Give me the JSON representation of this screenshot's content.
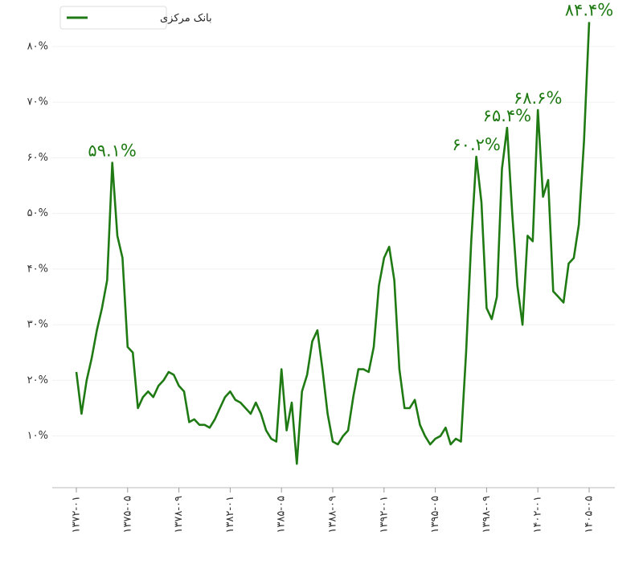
{
  "chart_data": {
    "type": "line",
    "categories": [
      "۱۳۷۲-۰۱",
      null,
      null,
      null,
      null,
      null,
      null,
      null,
      null,
      null,
      "۱۳۷۵-۰۵",
      null,
      null,
      null,
      null,
      null,
      null,
      null,
      null,
      null,
      "۱۳۷۸-۰۹",
      null,
      null,
      null,
      null,
      null,
      null,
      null,
      null,
      null,
      "۱۳۸۲-۰۱",
      null,
      null,
      null,
      null,
      null,
      null,
      null,
      null,
      null,
      "۱۳۸۵-۰۵",
      null,
      null,
      null,
      null,
      null,
      null,
      null,
      null,
      null,
      "۱۳۸۸-۰۹",
      null,
      null,
      null,
      null,
      null,
      null,
      null,
      null,
      null,
      "۱۳۹۲-۰۱",
      null,
      null,
      null,
      null,
      null,
      null,
      null,
      null,
      null,
      "۱۳۹۵-۰۵",
      null,
      null,
      null,
      null,
      null,
      null,
      null,
      null,
      null,
      "۱۳۹۸-۰۹",
      null,
      null,
      null,
      null,
      null,
      null,
      null,
      null,
      null,
      "۱۴۰۲-۰۱",
      null,
      null,
      null,
      null,
      null,
      null,
      null,
      null,
      null,
      "۱۴۰۵-۰۵"
    ],
    "series": [
      {
        "name": "بانک مرکزی",
        "color": "#1f7a14",
        "values": [
          21.5,
          14,
          20,
          24,
          29,
          33,
          38,
          59.1,
          46,
          42,
          26,
          25,
          15,
          17,
          18,
          17,
          19,
          20,
          21.5,
          21,
          19,
          18,
          12.5,
          13,
          12,
          12,
          11.5,
          13,
          15,
          17,
          18,
          16.5,
          16,
          15,
          14,
          16,
          14,
          11,
          9.5,
          9,
          22,
          11,
          16,
          5,
          18,
          21,
          27,
          29,
          22,
          14,
          9,
          8.5,
          10,
          11,
          17,
          22,
          22,
          21.5,
          26,
          37,
          42,
          44,
          38,
          22,
          15,
          15,
          16.5,
          12,
          10,
          8.5,
          9.5,
          10,
          11.5,
          8.5,
          9.5,
          9,
          25,
          45,
          60.2,
          52,
          33,
          31,
          35,
          58,
          65.4,
          50,
          37,
          30,
          46,
          45,
          68.6,
          53,
          56,
          36,
          35,
          34,
          41,
          42,
          48,
          63,
          84.4
        ],
        "value_labels": [
          null,
          null,
          null,
          null,
          null,
          null,
          null,
          "۵۹.۱%",
          null,
          null,
          null,
          null,
          null,
          null,
          null,
          null,
          null,
          null,
          null,
          null,
          null,
          null,
          null,
          null,
          null,
          null,
          null,
          null,
          null,
          null,
          null,
          null,
          null,
          null,
          null,
          null,
          null,
          null,
          null,
          null,
          null,
          null,
          null,
          null,
          null,
          null,
          null,
          null,
          null,
          null,
          null,
          null,
          null,
          null,
          null,
          null,
          null,
          null,
          null,
          null,
          null,
          null,
          null,
          null,
          null,
          null,
          null,
          null,
          null,
          null,
          null,
          null,
          null,
          null,
          null,
          null,
          null,
          null,
          "۶۰.۲%",
          null,
          null,
          null,
          null,
          null,
          "۶۵.۴%",
          null,
          null,
          null,
          null,
          null,
          "۶۸.۶%",
          null,
          null,
          null,
          null,
          null,
          null,
          null,
          null,
          null,
          "۸۴.۴%"
        ]
      }
    ],
    "ylim": [
      1,
      88
    ],
    "yticks": [
      {
        "value": 10,
        "label": "۱۰%"
      },
      {
        "value": 20,
        "label": "۲۰%"
      },
      {
        "value": 30,
        "label": "۳۰%"
      },
      {
        "value": 40,
        "label": "۴۰%"
      },
      {
        "value": 50,
        "label": "۵۰%"
      },
      {
        "value": 60,
        "label": "۶۰%"
      },
      {
        "value": 70,
        "label": "۷۰%"
      },
      {
        "value": 80,
        "label": "۸۰%"
      }
    ],
    "grid": true,
    "legend": "top-left"
  }
}
